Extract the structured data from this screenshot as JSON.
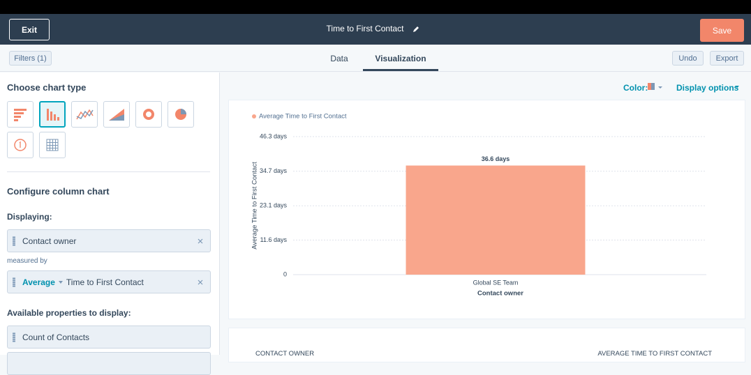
{
  "header": {
    "exit": "Exit",
    "title": "Time to First Contact",
    "save": "Save"
  },
  "toolbar": {
    "filters": "Filters (1)",
    "tabs": [
      "Data",
      "Visualization"
    ],
    "undo": "Undo",
    "export": "Export"
  },
  "sidebar": {
    "choose_title": "Choose chart type",
    "configure_title": "Configure column chart",
    "displaying_label": "Displaying:",
    "displaying": "Contact owner",
    "measured_by_label": "measured by",
    "aggregation": "Average",
    "measure": "Time to First Contact",
    "available_label": "Available properties to display:",
    "available": [
      "Count of Contacts"
    ]
  },
  "options": {
    "color": "Color:",
    "display_options": "Display options"
  },
  "chart_data": {
    "type": "bar",
    "categories": [
      "Global SE Team"
    ],
    "series": [
      {
        "name": "Average Time to First Contact",
        "color": "#f9a68c",
        "values": [
          36.6
        ],
        "value_labels": [
          "36.6 days"
        ]
      }
    ],
    "ylabel": "Average Time to First Contact",
    "xlabel": "Contact owner",
    "ylim": [
      0,
      46.3
    ],
    "yticks": [
      0,
      {
        "value": 11.6,
        "label": "11.6 days"
      },
      {
        "value": 23.1,
        "label": "23.1 days"
      },
      {
        "value": 34.7,
        "label": "34.7 days"
      },
      {
        "value": 46.3,
        "label": "46.3 days"
      }
    ],
    "grid": true
  },
  "table": {
    "columns": [
      "CONTACT OWNER",
      "AVERAGE TIME TO FIRST CONTACT"
    ]
  }
}
